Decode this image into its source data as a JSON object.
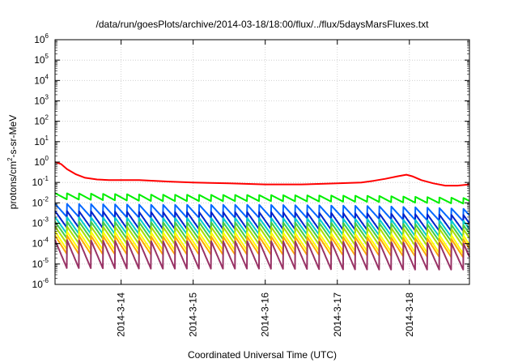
{
  "chart_data": {
    "type": "line",
    "title": "/data/run/goesPlots/archive/2014-03-18/18:00/flux/../flux/5daysMarsFluxes.txt",
    "xlabel": "Coordinated Universal Time (UTC)",
    "ylabel": {
      "prefix": "protons/cm",
      "sup": "2",
      "suffix": "-s-sr-MeV"
    },
    "x_range": [
      "2014-03-13T02:00",
      "2014-03-18T20:00"
    ],
    "x_ticks": [
      "2014-3-14",
      "2014-3-15",
      "2014-3-16",
      "2014-3-17",
      "2014-3-18"
    ],
    "y_scale": "log",
    "ylim": [
      1e-06,
      1000000.0
    ],
    "y_ticks": [
      {
        "base": "10",
        "exp": "-6"
      },
      {
        "base": "10",
        "exp": "-5"
      },
      {
        "base": "10",
        "exp": "-4"
      },
      {
        "base": "10",
        "exp": "-3"
      },
      {
        "base": "10",
        "exp": "-2"
      },
      {
        "base": "10",
        "exp": "-1"
      },
      {
        "base": "10",
        "exp": "0"
      },
      {
        "base": "10",
        "exp": "1"
      },
      {
        "base": "10",
        "exp": "2"
      },
      {
        "base": "10",
        "exp": "3"
      },
      {
        "base": "10",
        "exp": "4"
      },
      {
        "base": "10",
        "exp": "5"
      },
      {
        "base": "10",
        "exp": "6"
      }
    ],
    "grid": true,
    "legend": "none",
    "sawtooth_period_hours": 4,
    "series": [
      {
        "color": "#ff0000",
        "sawtooth": false,
        "points": [
          [
            "2014-03-13T02:00",
            1.0
          ],
          [
            "2014-03-13T04:00",
            0.8
          ],
          [
            "2014-03-13T06:00",
            0.45
          ],
          [
            "2014-03-13T09:00",
            0.25
          ],
          [
            "2014-03-13T12:00",
            0.17
          ],
          [
            "2014-03-13T16:00",
            0.14
          ],
          [
            "2014-03-13T20:00",
            0.13
          ],
          [
            "2014-03-14T06:00",
            0.13
          ],
          [
            "2014-03-14T16:00",
            0.11
          ],
          [
            "2014-03-15T00:00",
            0.1
          ],
          [
            "2014-03-15T12:00",
            0.09
          ],
          [
            "2014-03-16T00:00",
            0.08
          ],
          [
            "2014-03-16T12:00",
            0.08
          ],
          [
            "2014-03-17T00:00",
            0.09
          ],
          [
            "2014-03-17T08:00",
            0.1
          ],
          [
            "2014-03-17T12:00",
            0.12
          ],
          [
            "2014-03-17T16:00",
            0.15
          ],
          [
            "2014-03-17T20:00",
            0.2
          ],
          [
            "2014-03-17T23:00",
            0.24
          ],
          [
            "2014-03-18T01:00",
            0.2
          ],
          [
            "2014-03-18T04:00",
            0.13
          ],
          [
            "2014-03-18T08:00",
            0.09
          ],
          [
            "2014-03-18T12:00",
            0.07
          ],
          [
            "2014-03-18T16:00",
            0.07
          ],
          [
            "2014-03-18T20:00",
            0.08
          ]
        ]
      },
      {
        "color": "#00ee00",
        "sawtooth": true,
        "points": [
          [
            "2014-03-13T02:00",
            0.03
          ],
          [
            "2014-03-14T12:00",
            0.025
          ],
          [
            "2014-03-16T00:00",
            0.024
          ],
          [
            "2014-03-17T12:00",
            0.022
          ],
          [
            "2014-03-18T20:00",
            0.017
          ]
        ],
        "low_points": [
          [
            "2014-03-13T02:00",
            0.015
          ],
          [
            "2014-03-14T12:00",
            0.012
          ],
          [
            "2014-03-16T00:00",
            0.012
          ],
          [
            "2014-03-17T12:00",
            0.011
          ],
          [
            "2014-03-18T20:00",
            0.009
          ]
        ]
      },
      {
        "color": "#0066ff",
        "sawtooth": true,
        "points": [
          [
            "2014-03-13T02:00",
            0.009
          ],
          [
            "2014-03-14T12:00",
            0.008
          ],
          [
            "2014-03-16T00:00",
            0.008
          ],
          [
            "2014-03-17T12:00",
            0.007
          ],
          [
            "2014-03-18T20:00",
            0.005
          ]
        ],
        "low_points": [
          [
            "2014-03-13T02:00",
            0.002
          ],
          [
            "2014-03-14T12:00",
            0.0018
          ],
          [
            "2014-03-16T00:00",
            0.0018
          ],
          [
            "2014-03-17T12:00",
            0.0016
          ],
          [
            "2014-03-18T20:00",
            0.0012
          ]
        ]
      },
      {
        "color": "#0022cc",
        "sawtooth": true,
        "points": [
          [
            "2014-03-13T02:00",
            0.004
          ],
          [
            "2014-03-14T12:00",
            0.0035
          ],
          [
            "2014-03-16T00:00",
            0.0035
          ],
          [
            "2014-03-17T12:00",
            0.003
          ],
          [
            "2014-03-18T20:00",
            0.0025
          ]
        ],
        "low_points": [
          [
            "2014-03-13T02:00",
            0.0006
          ],
          [
            "2014-03-14T12:00",
            0.0005
          ],
          [
            "2014-03-16T00:00",
            0.0005
          ],
          [
            "2014-03-17T12:00",
            0.00045
          ],
          [
            "2014-03-18T20:00",
            0.0004
          ]
        ]
      },
      {
        "color": "#00cccc",
        "sawtooth": true,
        "points": [
          [
            "2014-03-13T02:00",
            0.002
          ],
          [
            "2014-03-14T12:00",
            0.0018
          ],
          [
            "2014-03-16T00:00",
            0.0018
          ],
          [
            "2014-03-17T12:00",
            0.0016
          ],
          [
            "2014-03-18T20:00",
            0.0013
          ]
        ],
        "low_points": [
          [
            "2014-03-13T02:00",
            0.0003
          ],
          [
            "2014-03-14T12:00",
            0.00028
          ],
          [
            "2014-03-16T00:00",
            0.00028
          ],
          [
            "2014-03-17T12:00",
            0.00025
          ],
          [
            "2014-03-18T20:00",
            0.0002
          ]
        ]
      },
      {
        "color": "#44cc44",
        "sawtooth": true,
        "points": [
          [
            "2014-03-13T02:00",
            0.0012
          ],
          [
            "2014-03-14T12:00",
            0.0011
          ],
          [
            "2014-03-16T00:00",
            0.0011
          ],
          [
            "2014-03-17T12:00",
            0.001
          ],
          [
            "2014-03-18T20:00",
            0.0008
          ]
        ],
        "low_points": [
          [
            "2014-03-13T02:00",
            0.00018
          ],
          [
            "2014-03-14T12:00",
            0.00016
          ],
          [
            "2014-03-16T00:00",
            0.00016
          ],
          [
            "2014-03-17T12:00",
            0.00015
          ],
          [
            "2014-03-18T20:00",
            0.00012
          ]
        ]
      },
      {
        "color": "#aadd00",
        "sawtooth": true,
        "points": [
          [
            "2014-03-13T02:00",
            0.0007
          ],
          [
            "2014-03-14T12:00",
            0.00065
          ],
          [
            "2014-03-16T00:00",
            0.00065
          ],
          [
            "2014-03-17T12:00",
            0.0006
          ],
          [
            "2014-03-18T20:00",
            0.0005
          ]
        ],
        "low_points": [
          [
            "2014-03-13T02:00",
            0.0001
          ],
          [
            "2014-03-14T12:00",
            9e-05
          ],
          [
            "2014-03-16T00:00",
            9e-05
          ],
          [
            "2014-03-17T12:00",
            8e-05
          ],
          [
            "2014-03-18T20:00",
            7e-05
          ]
        ]
      },
      {
        "color": "#ffff00",
        "sawtooth": true,
        "points": [
          [
            "2014-03-13T02:00",
            0.0004
          ],
          [
            "2014-03-14T12:00",
            0.00035
          ],
          [
            "2014-03-16T00:00",
            0.00035
          ],
          [
            "2014-03-17T12:00",
            0.0003
          ],
          [
            "2014-03-18T20:00",
            0.00025
          ]
        ],
        "low_points": [
          [
            "2014-03-13T02:00",
            5e-05
          ],
          [
            "2014-03-14T12:00",
            4.5e-05
          ],
          [
            "2014-03-16T00:00",
            4.5e-05
          ],
          [
            "2014-03-17T12:00",
            4e-05
          ],
          [
            "2014-03-18T20:00",
            3e-05
          ]
        ]
      },
      {
        "color": "#ffaa00",
        "sawtooth": true,
        "points": [
          [
            "2014-03-13T02:00",
            0.00025
          ],
          [
            "2014-03-14T12:00",
            0.00022
          ],
          [
            "2014-03-16T00:00",
            0.00022
          ],
          [
            "2014-03-17T12:00",
            0.0002
          ],
          [
            "2014-03-18T20:00",
            0.00016
          ]
        ],
        "low_points": [
          [
            "2014-03-13T02:00",
            3e-05
          ],
          [
            "2014-03-14T12:00",
            2.8e-05
          ],
          [
            "2014-03-16T00:00",
            2.8e-05
          ],
          [
            "2014-03-17T12:00",
            2.5e-05
          ],
          [
            "2014-03-18T20:00",
            2e-05
          ]
        ]
      },
      {
        "color": "#993366",
        "sawtooth": true,
        "points": [
          [
            "2014-03-13T02:00",
            0.00015
          ],
          [
            "2014-03-14T12:00",
            0.00013
          ],
          [
            "2014-03-16T00:00",
            0.00013
          ],
          [
            "2014-03-17T12:00",
            0.00012
          ],
          [
            "2014-03-18T20:00",
            0.0001
          ]
        ],
        "low_points": [
          [
            "2014-03-13T02:00",
            6e-06
          ],
          [
            "2014-03-14T12:00",
            5.5e-06
          ],
          [
            "2014-03-16T00:00",
            5.5e-06
          ],
          [
            "2014-03-17T12:00",
            5e-06
          ],
          [
            "2014-03-18T20:00",
            5e-06
          ]
        ]
      }
    ]
  }
}
